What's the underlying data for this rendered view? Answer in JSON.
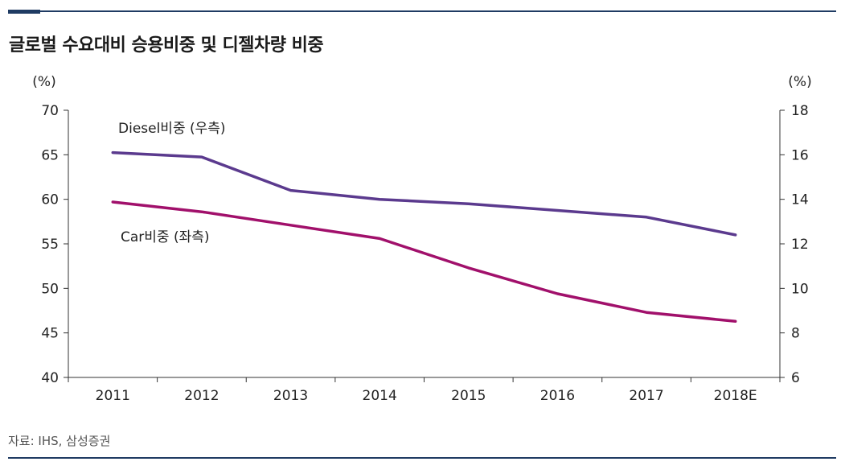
{
  "title": "글로벌 수요대비 승용비중 및 디젤차량 비중",
  "source": "자료: IHS, 삼성증권",
  "colors": {
    "car": "#a1106b",
    "diesel": "#5b3a8e",
    "axis": "#333333",
    "rule": "#1f3b63"
  },
  "chart_data": {
    "type": "line",
    "categories": [
      "2011",
      "2012",
      "2013",
      "2014",
      "2015",
      "2016",
      "2017",
      "2018E"
    ],
    "y_left": {
      "unit": "(%)",
      "min": 40,
      "max": 70,
      "ticks": [
        40,
        45,
        50,
        55,
        60,
        65,
        70
      ]
    },
    "y_right": {
      "unit": "(%)",
      "min": 6,
      "max": 18,
      "ticks": [
        6,
        8,
        10,
        12,
        14,
        16,
        18
      ]
    },
    "series": [
      {
        "name": "Diesel비중 (우측)",
        "axis": "right",
        "color": "#5b3a8e",
        "values": [
          16.1,
          15.9,
          14.4,
          14.0,
          13.8,
          13.5,
          13.2,
          12.4
        ]
      },
      {
        "name": "Car비중 (좌측)",
        "axis": "left",
        "color": "#a1106b",
        "values": [
          59.7,
          58.6,
          57.1,
          55.6,
          52.3,
          49.4,
          47.3,
          46.3
        ]
      }
    ],
    "grid": false,
    "legend": "inline labels"
  }
}
